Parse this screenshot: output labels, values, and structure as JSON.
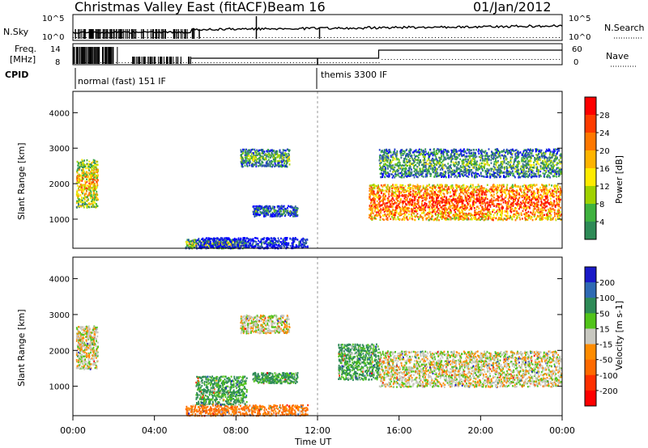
{
  "header": {
    "station": "Christmas Valley East (fitACF)",
    "beam": "Beam 16",
    "date": "01/Jan/2012"
  },
  "strip_top": {
    "left_label": "N.Sky",
    "right_label": "N.Search",
    "left_ticks": [
      "10^5",
      "10^0"
    ],
    "right_ticks": [
      "10^5",
      "10^0"
    ]
  },
  "strip_mid": {
    "left_label_1": "Freq.",
    "left_label_2": "[MHz]",
    "right_label": "Nave",
    "left_ticks": [
      "14",
      "8"
    ],
    "right_ticks": [
      "60",
      "0"
    ]
  },
  "cpid": {
    "label": "CPID",
    "program_1": "normal (fast) 151 IF",
    "program_2": "themis 3300 IF"
  },
  "x_axis": {
    "label": "Time UT",
    "ticks": [
      "00:00",
      "04:00",
      "08:00",
      "12:00",
      "16:00",
      "20:00",
      "00:00"
    ]
  },
  "power_colorbar": {
    "label": "Power [dB]",
    "ticks": [
      "28",
      "24",
      "20",
      "16",
      "12",
      "8",
      "4"
    ],
    "colors": [
      "#ff0000",
      "#ff3c00",
      "#ff7800",
      "#ffb400",
      "#ffeb00",
      "#a0d200",
      "#3fb23f",
      "#2e8b57",
      "#3c6e96",
      "#1e3cc8",
      "#0000ff"
    ]
  },
  "velocity_colorbar": {
    "label": "Velocity [m s-1]",
    "ticks": [
      "200",
      "100",
      "50",
      "15",
      "-15",
      "-50",
      "-100",
      "-200"
    ],
    "colors": [
      "#1a1ac8",
      "#2f6ab4",
      "#2e8b57",
      "#52c41a",
      "#c8c8c0",
      "#ff8c00",
      "#ff6a00",
      "#ff3000",
      "#ff0000"
    ]
  },
  "chart_data": [
    {
      "type": "heatmap",
      "title": "Power",
      "xlabel": "Time UT",
      "ylabel": "Slant Range [km]",
      "x_range_hours": [
        0,
        24
      ],
      "ylim_km": [
        180,
        4600
      ],
      "y_ticks": [
        1000,
        2000,
        3000,
        4000
      ],
      "colorbar": "Power [dB]",
      "scatter_regions": [
        {
          "t": [
            0.15,
            1.2
          ],
          "r": [
            1350,
            2700
          ],
          "power_db": 22
        },
        {
          "t": [
            5.5,
            8.5
          ],
          "r": [
            200,
            450
          ],
          "power_db": 18
        },
        {
          "t": [
            6.0,
            11.5
          ],
          "r": [
            200,
            500
          ],
          "power_db": 6
        },
        {
          "t": [
            8.2,
            10.6
          ],
          "r": [
            2500,
            3000
          ],
          "power_db": 14
        },
        {
          "t": [
            8.8,
            11.0
          ],
          "r": [
            1100,
            1400
          ],
          "power_db": 10
        },
        {
          "t": [
            14.5,
            24.0
          ],
          "r": [
            1000,
            2000
          ],
          "power_db": 28
        },
        {
          "t": [
            15.0,
            24.0
          ],
          "r": [
            2200,
            3000
          ],
          "power_db": 14
        }
      ]
    },
    {
      "type": "heatmap",
      "title": "Velocity",
      "xlabel": "Time UT",
      "ylabel": "Slant Range [km]",
      "x_range_hours": [
        0,
        24
      ],
      "ylim_km": [
        180,
        4600
      ],
      "y_ticks": [
        1000,
        2000,
        3000,
        4000
      ],
      "colorbar": "Velocity [m s-1]",
      "scatter_regions": [
        {
          "t": [
            0.15,
            1.2
          ],
          "r": [
            1500,
            2700
          ],
          "velocity": 0
        },
        {
          "t": [
            5.5,
            11.5
          ],
          "r": [
            200,
            500
          ],
          "velocity": -40
        },
        {
          "t": [
            6.0,
            8.5
          ],
          "r": [
            500,
            1300
          ],
          "velocity": 40
        },
        {
          "t": [
            8.2,
            10.6
          ],
          "r": [
            2500,
            3000
          ],
          "velocity": 0
        },
        {
          "t": [
            8.8,
            11.0
          ],
          "r": [
            1100,
            1400
          ],
          "velocity": 40
        },
        {
          "t": [
            13.0,
            15.0
          ],
          "r": [
            1200,
            2200
          ],
          "velocity": 40
        },
        {
          "t": [
            15.0,
            24.0
          ],
          "r": [
            1000,
            2000
          ],
          "velocity": 0
        }
      ]
    }
  ]
}
